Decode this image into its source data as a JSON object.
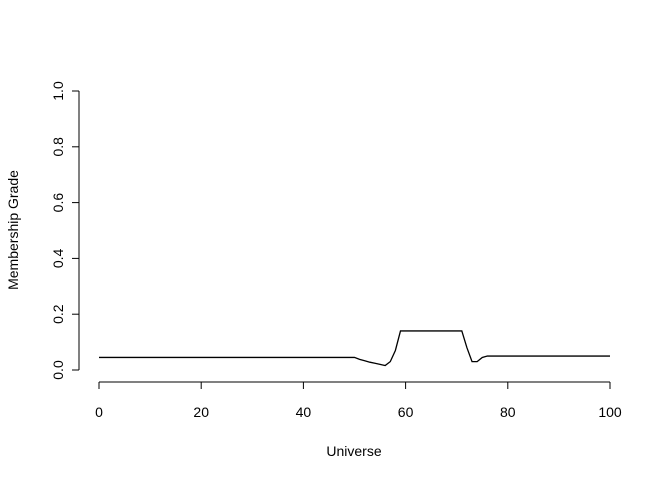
{
  "chart_data": {
    "type": "line",
    "title": "",
    "xlabel": "Universe",
    "ylabel": "Membership Grade",
    "xlim": [
      0,
      100
    ],
    "ylim": [
      0,
      1
    ],
    "x_ticks": [
      0,
      20,
      40,
      60,
      80,
      100
    ],
    "x_tick_labels": [
      "0",
      "20",
      "40",
      "60",
      "80",
      "100"
    ],
    "y_ticks": [
      0,
      0.2,
      0.4,
      0.6,
      0.8,
      1
    ],
    "y_tick_labels": [
      "0.0",
      "0.2",
      "0.4",
      "0.6",
      "0.8",
      "1.0"
    ],
    "grid": false,
    "legend": "none",
    "line_color": "#000000",
    "series": [
      {
        "x": [
          0,
          50,
          51,
          52,
          53,
          54,
          55,
          56,
          57,
          58,
          59,
          60,
          65,
          70,
          71,
          72,
          73,
          74,
          75,
          76,
          80,
          90,
          100
        ],
        "y": [
          0.045,
          0.045,
          0.038,
          0.033,
          0.028,
          0.024,
          0.02,
          0.016,
          0.03,
          0.07,
          0.14,
          0.14,
          0.14,
          0.14,
          0.14,
          0.08,
          0.03,
          0.03,
          0.045,
          0.05,
          0.05,
          0.05,
          0.05
        ]
      }
    ]
  }
}
